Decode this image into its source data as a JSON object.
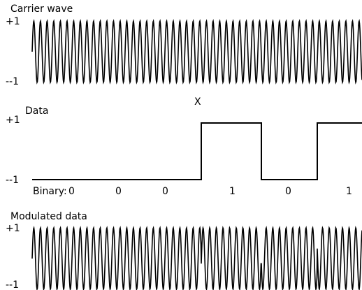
{
  "panels": {
    "carrier": {
      "label": "Carrier wave",
      "y_top_label": "+1",
      "y_bottom_label": "--1"
    },
    "data": {
      "label": "Data",
      "y_top_label": "+1",
      "y_bottom_label": "--1",
      "marker": "X"
    },
    "modulated": {
      "label": "Modulated data",
      "y_top_label": "+1",
      "y_bottom_label": "--1"
    }
  },
  "binary": {
    "prefix": "Binary:",
    "bits": [
      "0",
      "0",
      "0",
      "1",
      "0",
      "1"
    ],
    "bit_values": [
      0,
      0,
      0,
      1,
      0,
      1
    ]
  },
  "colors": {
    "line": "#000000",
    "background": "#ffffff"
  }
}
